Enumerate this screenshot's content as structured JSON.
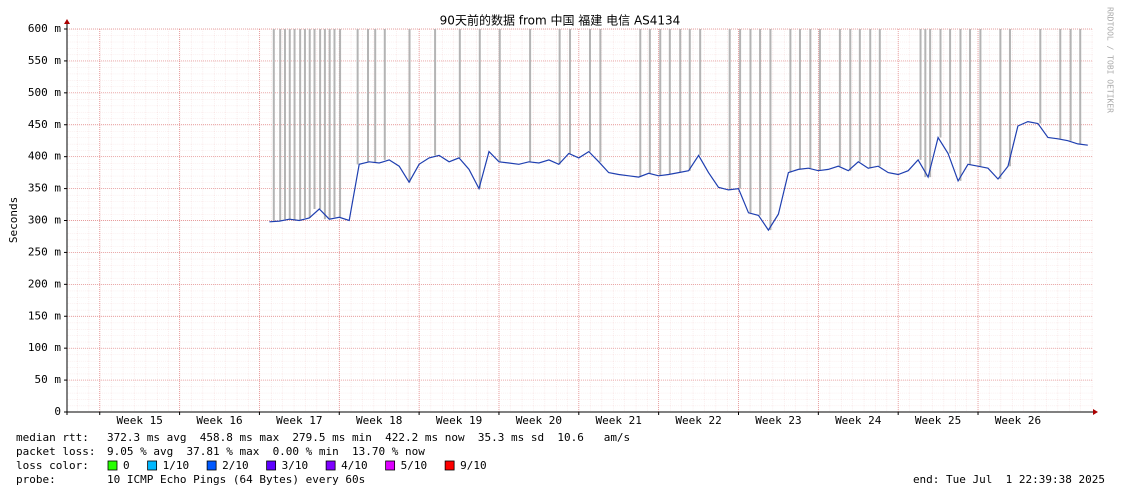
{
  "chart_data": {
    "type": "line",
    "title": "90天前的数据 from 中国 福建 电信 AS4134",
    "y_label": "Seconds",
    "watermark": "RRDTOOL / TOBI OETIKER",
    "xlim": [
      14.59,
      27.44
    ],
    "xticks": [
      {
        "value": 15,
        "label": "Week 15"
      },
      {
        "value": 16,
        "label": "Week 16"
      },
      {
        "value": 17,
        "label": "Week 17"
      },
      {
        "value": 18,
        "label": "Week 18"
      },
      {
        "value": 19,
        "label": "Week 19"
      },
      {
        "value": 20,
        "label": "Week 20"
      },
      {
        "value": 21,
        "label": "Week 21"
      },
      {
        "value": 22,
        "label": "Week 22"
      },
      {
        "value": 23,
        "label": "Week 23"
      },
      {
        "value": 24,
        "label": "Week 24"
      },
      {
        "value": 25,
        "label": "Week 25"
      },
      {
        "value": 26,
        "label": "Week 26"
      }
    ],
    "ylim": [
      0,
      0.6
    ],
    "yticks": [
      {
        "value": 0,
        "label": "0"
      },
      {
        "value": 0.05,
        "label": "50 m"
      },
      {
        "value": 0.1,
        "label": "100 m"
      },
      {
        "value": 0.15,
        "label": "150 m"
      },
      {
        "value": 0.2,
        "label": "200 m"
      },
      {
        "value": 0.25,
        "label": "250 m"
      },
      {
        "value": 0.3,
        "label": "300 m"
      },
      {
        "value": 0.35,
        "label": "350 m"
      },
      {
        "value": 0.4,
        "label": "400 m"
      },
      {
        "value": 0.45,
        "label": "450 m"
      },
      {
        "value": 0.5,
        "label": "500 m"
      },
      {
        "value": 0.55,
        "label": "550 m"
      },
      {
        "value": 0.6,
        "label": "600 m"
      }
    ],
    "grid": true,
    "x": [
      17.125,
      17.25,
      17.375,
      17.5,
      17.625,
      17.75,
      17.875,
      18.0,
      18.125,
      18.25,
      18.375,
      18.5,
      18.625,
      18.75,
      18.875,
      19.0,
      19.125,
      19.25,
      19.375,
      19.5,
      19.625,
      19.75,
      19.875,
      20.0,
      20.125,
      20.25,
      20.375,
      20.5,
      20.625,
      20.75,
      20.875,
      21.0,
      21.125,
      21.25,
      21.375,
      21.5,
      21.625,
      21.75,
      21.875,
      22.0,
      22.125,
      22.25,
      22.375,
      22.5,
      22.625,
      22.75,
      22.875,
      23.0,
      23.125,
      23.25,
      23.375,
      23.5,
      23.625,
      23.75,
      23.875,
      24.0,
      24.125,
      24.25,
      24.375,
      24.5,
      24.625,
      24.75,
      24.875,
      25.0,
      25.125,
      25.25,
      25.375,
      25.5,
      25.625,
      25.75,
      25.875,
      26.0,
      26.125,
      26.25,
      26.375,
      26.5,
      26.625,
      26.75,
      26.875,
      27.0,
      27.125,
      27.25,
      27.375
    ],
    "series": [
      {
        "name": "median rtt",
        "color": "#1f3fb0",
        "values": [
          0.298,
          0.299,
          0.302,
          0.3,
          0.304,
          0.318,
          0.302,
          0.305,
          0.3,
          0.388,
          0.392,
          0.39,
          0.395,
          0.385,
          0.36,
          0.388,
          0.398,
          0.402,
          0.392,
          0.398,
          0.38,
          0.35,
          0.408,
          0.392,
          0.39,
          0.388,
          0.392,
          0.39,
          0.395,
          0.388,
          0.405,
          0.398,
          0.408,
          0.392,
          0.375,
          0.372,
          0.37,
          0.368,
          0.374,
          0.37,
          0.372,
          0.375,
          0.378,
          0.402,
          0.375,
          0.352,
          0.348,
          0.35,
          0.312,
          0.308,
          0.285,
          0.31,
          0.375,
          0.38,
          0.382,
          0.378,
          0.38,
          0.385,
          0.378,
          0.392,
          0.382,
          0.385,
          0.375,
          0.372,
          0.378,
          0.395,
          0.368,
          0.43,
          0.405,
          0.362,
          0.388,
          0.385,
          0.382,
          0.365,
          0.385,
          0.448,
          0.455,
          0.452,
          0.43,
          0.428,
          0.425,
          0.42,
          0.418
        ]
      }
    ],
    "loss_events": {
      "color": "#b4b4b4",
      "x": [
        17.18,
        17.26,
        17.32,
        17.38,
        17.44,
        17.51,
        17.57,
        17.63,
        17.69,
        17.76,
        17.82,
        17.88,
        17.94,
        18.01,
        18.23,
        18.36,
        18.45,
        18.57,
        18.88,
        19.2,
        19.51,
        19.76,
        20.01,
        20.39,
        20.76,
        20.89,
        21.14,
        21.27,
        21.77,
        21.89,
        22.02,
        22.14,
        22.27,
        22.39,
        22.52,
        22.89,
        23.02,
        23.15,
        23.27,
        23.4,
        23.65,
        23.77,
        23.9,
        24.02,
        24.27,
        24.4,
        24.52,
        24.65,
        24.77,
        25.28,
        25.34,
        25.4,
        25.53,
        25.65,
        25.78,
        25.9,
        26.03,
        26.28,
        26.4,
        26.78,
        27.03,
        27.16,
        27.28
      ]
    },
    "stats": {
      "median_rtt": {
        "label": "median rtt:",
        "text": "372.3 ms avg  458.8 ms max  279.5 ms min  422.2 ms now  35.3 ms sd  10.6   am/s"
      },
      "packet_loss": {
        "label": "packet loss:",
        "text": "9.05 % avg  37.81 % max  0.00 % min  13.70 % now"
      },
      "probe": {
        "label": "probe:",
        "text": "10 ICMP Echo Pings (64 Bytes) every 60s"
      },
      "end": "end: Tue Jul  1 22:39:38 2025"
    },
    "loss_legend": {
      "label": "loss color:",
      "items": [
        {
          "name": "0",
          "color": "#26ff00"
        },
        {
          "name": "1/10",
          "color": "#00b8ff"
        },
        {
          "name": "2/10",
          "color": "#0059ff"
        },
        {
          "name": "3/10",
          "color": "#5e00ff"
        },
        {
          "name": "4/10",
          "color": "#7e00ff"
        },
        {
          "name": "5/10",
          "color": "#dd00ff"
        },
        {
          "name": "9/10",
          "color": "#ff0000"
        }
      ]
    }
  }
}
